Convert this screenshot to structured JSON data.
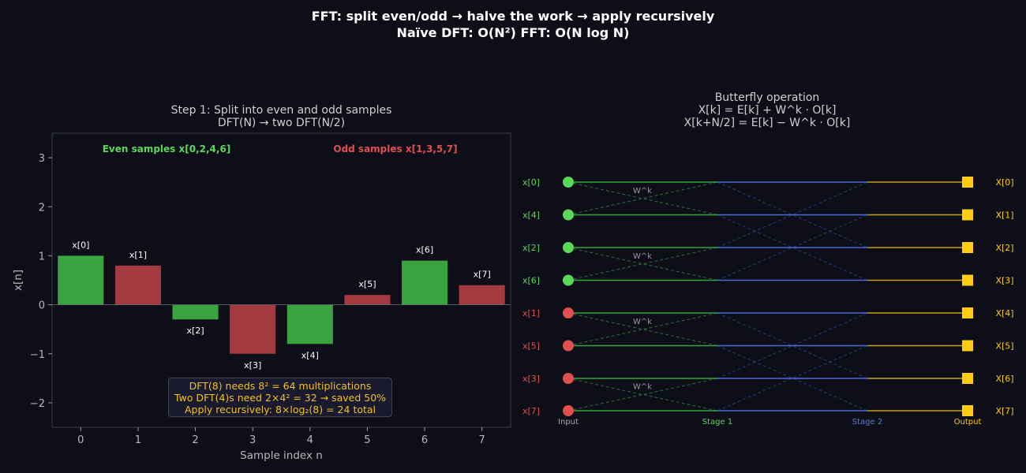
{
  "title": {
    "line1": "FFT: split even/odd → halve the work → apply recursively",
    "line2": "Naïve DFT: O(N²)    FFT: O(N log N)"
  },
  "left_panel": {
    "title_line1": "Step 1: Split into even and odd samples",
    "title_line2": "DFT(N) → two DFT(N/2)",
    "even_label": "Even samples x[0,2,4,6]",
    "odd_label": "Odd samples x[1,3,5,7]",
    "note_lines": [
      "DFT(8) needs 8² = 64 multiplications",
      "Two DFT(4)s need 2×4² = 32  →  saved 50%",
      "Apply recursively: 8×log₂(8) = 24 total"
    ]
  },
  "right_panel": {
    "title_line1": "Butterfly operation",
    "title_line2": "X[k] = E[k] + W^k · O[k]",
    "title_line3": "X[k+N/2] = E[k] − W^k · O[k]",
    "input_labels": [
      "x[0]",
      "x[4]",
      "x[2]",
      "x[6]",
      "x[1]",
      "x[5]",
      "x[3]",
      "x[7]"
    ],
    "output_labels": [
      "X[0]",
      "X[1]",
      "X[2]",
      "X[3]",
      "X[4]",
      "X[5]",
      "X[6]",
      "X[7]"
    ],
    "twiddle_label": "W^k",
    "stage_labels": [
      "Input",
      "Stage 1",
      "Stage 2",
      "Output"
    ]
  },
  "colors": {
    "even": "#3aa23f",
    "odd": "#a23a3f",
    "even_text": "#5ad85a",
    "odd_text": "#e05050",
    "stage2": "#4a6ad0",
    "output": "#ffcc11",
    "output_line": "#c8a020"
  },
  "chart_data": {
    "type": "bar",
    "categories": [
      "0",
      "1",
      "2",
      "3",
      "4",
      "5",
      "6",
      "7"
    ],
    "values": [
      1.0,
      0.8,
      -0.3,
      -1.0,
      -0.8,
      0.2,
      0.9,
      0.4
    ],
    "bar_labels": [
      "x[0]",
      "x[1]",
      "x[2]",
      "x[3]",
      "x[4]",
      "x[5]",
      "x[6]",
      "x[7]"
    ],
    "bar_groups": [
      "even",
      "odd",
      "even",
      "odd",
      "even",
      "odd",
      "even",
      "odd"
    ],
    "xlabel": "Sample index n",
    "ylabel": "x[n]",
    "yticks": [
      -2,
      -1,
      0,
      1,
      2,
      3
    ],
    "ytick_labels": [
      "−2",
      "−1",
      "0",
      "1",
      "2",
      "3"
    ],
    "xlim": [
      -0.5,
      7.5
    ],
    "ylim": [
      -2.5,
      3.5
    ],
    "grid": false
  }
}
